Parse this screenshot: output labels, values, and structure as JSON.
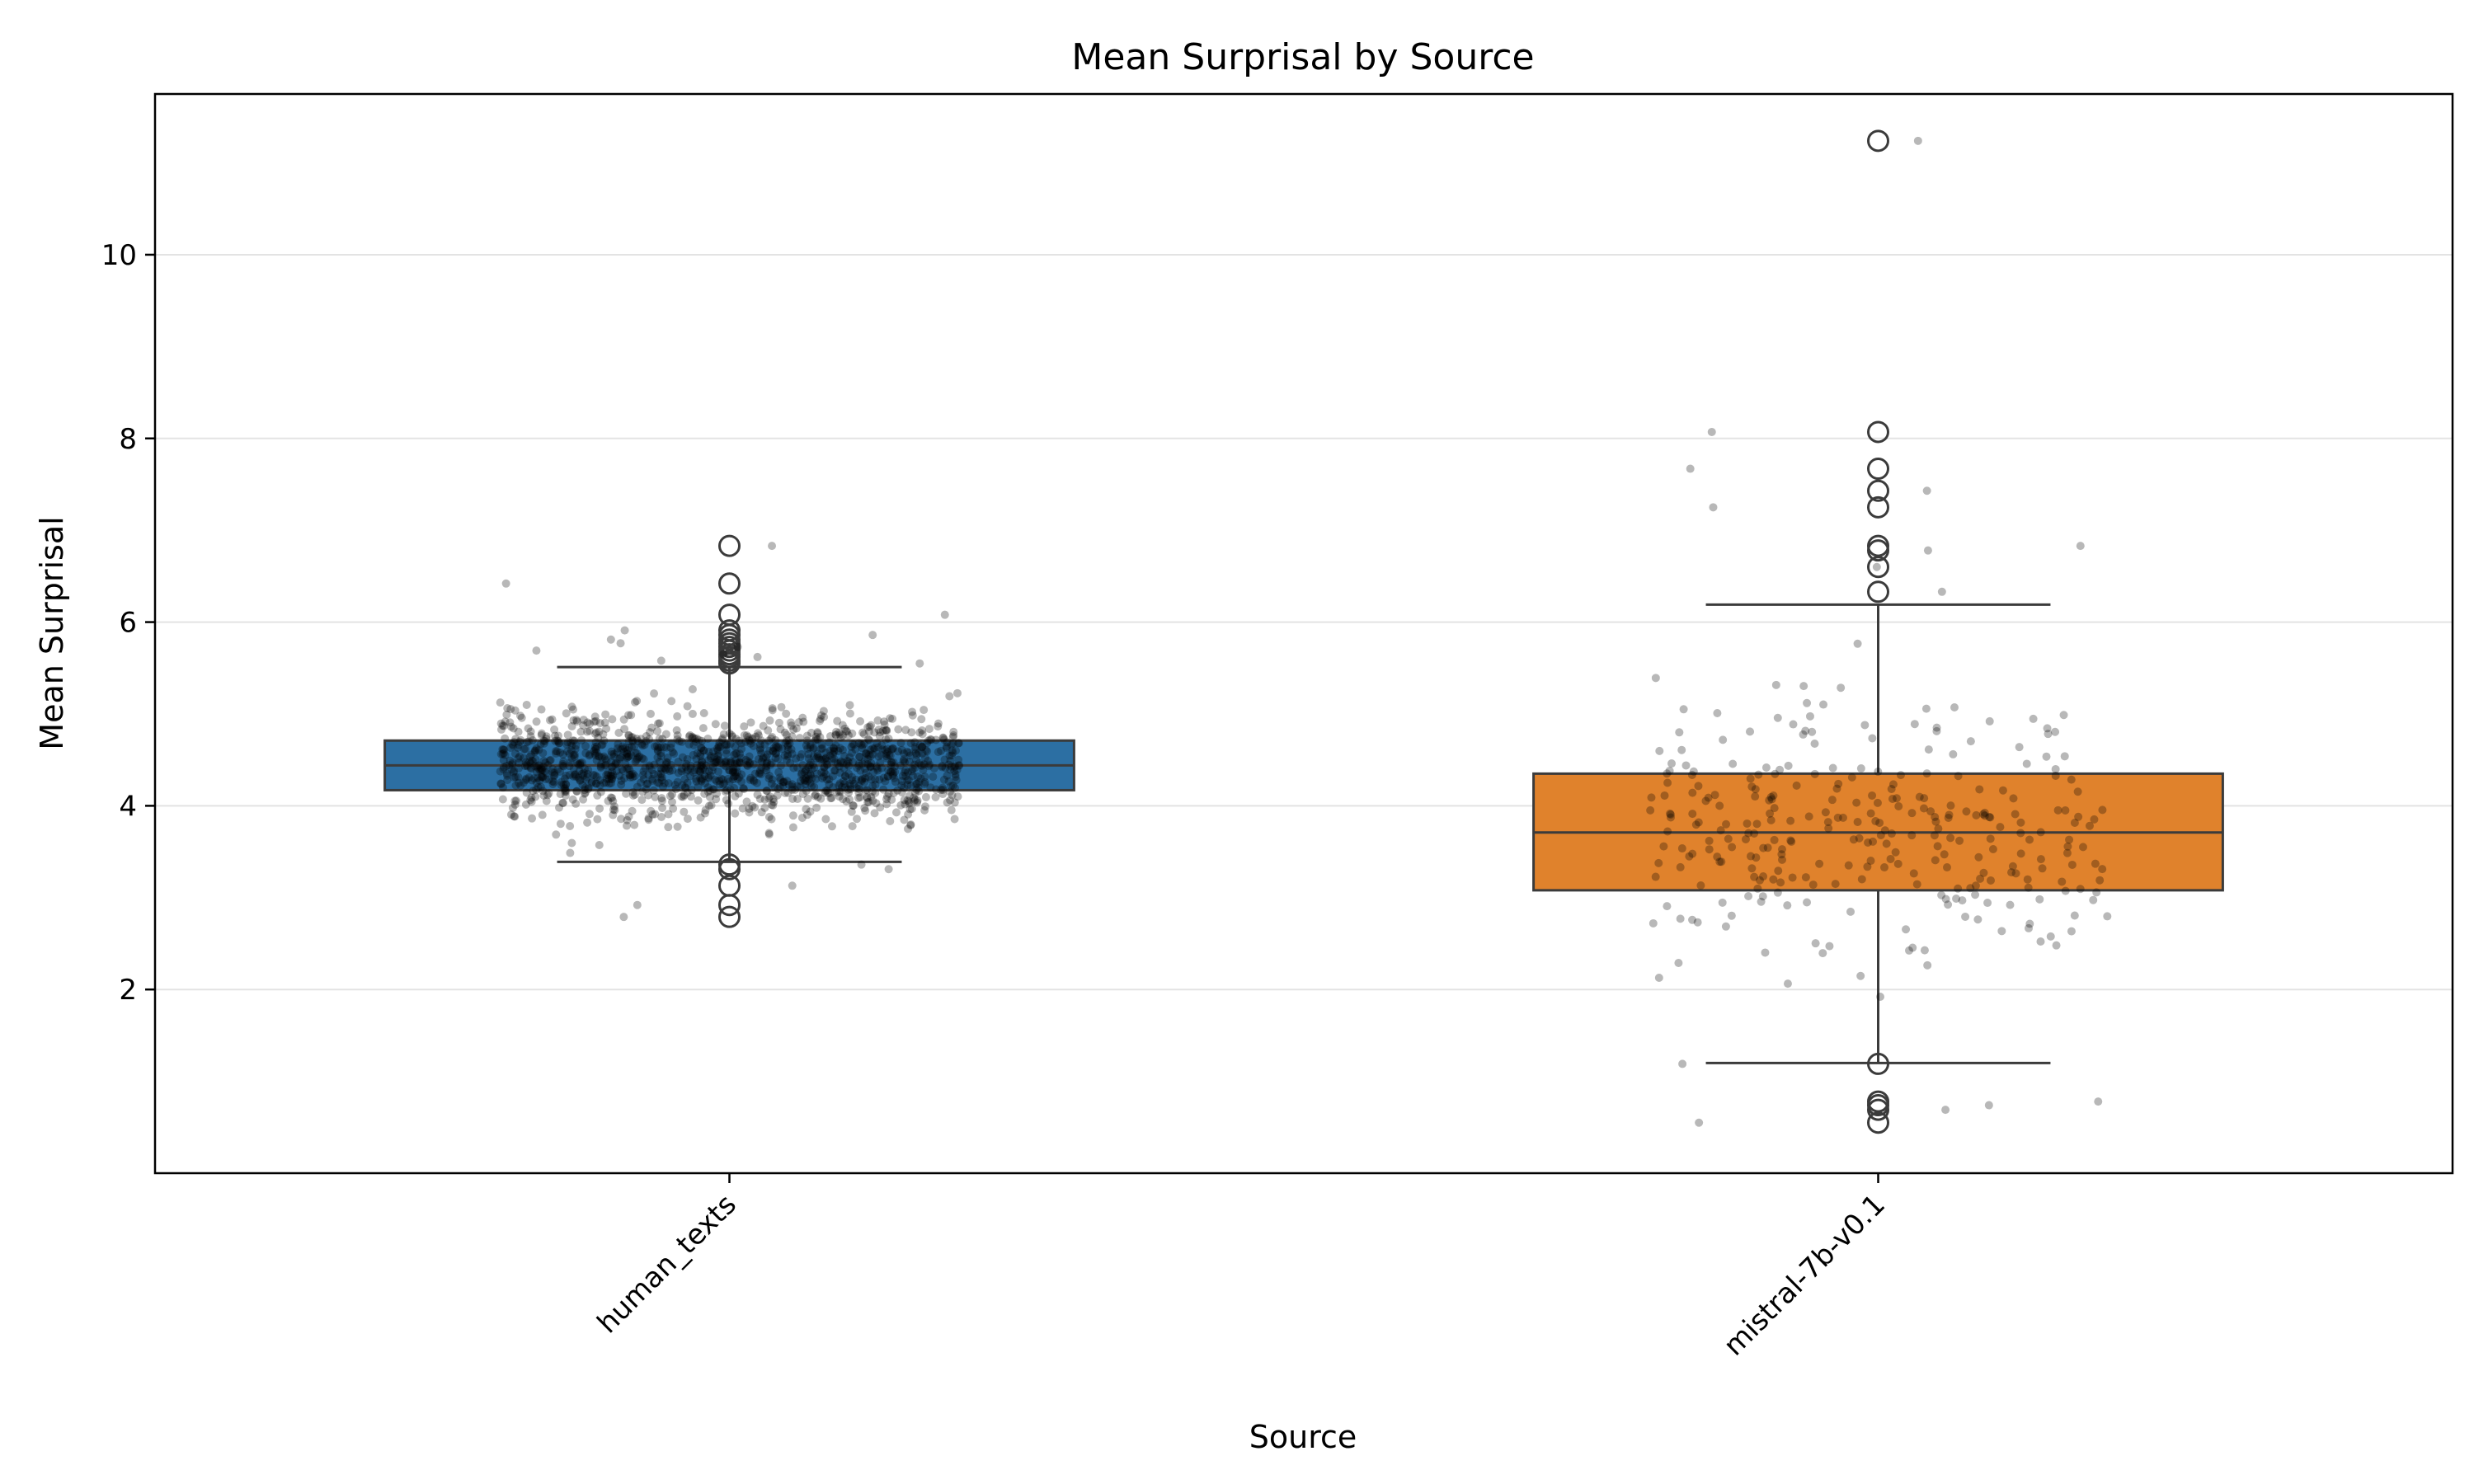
{
  "chart_data": {
    "type": "box",
    "title": "Mean Surprisal by Source",
    "xlabel": "Source",
    "ylabel": "Mean Surprisal",
    "ylim": [
      0,
      11.75
    ],
    "yticks": [
      2,
      4,
      6,
      8,
      10
    ],
    "grid": "y",
    "categories": [
      "human_texts",
      "mistral-7b-v0.1"
    ],
    "boxes": [
      {
        "name": "human_texts",
        "color": "#1f77b4",
        "fill": "#2c6fa3",
        "q1": 4.17,
        "median": 4.44,
        "q3": 4.71,
        "whisker_low": 3.39,
        "whisker_high": 5.51,
        "outliers": [
          6.83,
          6.42,
          6.08,
          5.91,
          5.86,
          5.81,
          5.77,
          5.73,
          5.69,
          5.65,
          5.62,
          5.58,
          5.55,
          3.36,
          3.31,
          3.13,
          2.92,
          2.79
        ],
        "jitter_count": 1400,
        "jitter_range": [
          2.79,
          6.83
        ]
      },
      {
        "name": "mistral-7b-v0.1",
        "color": "#ff7f0e",
        "fill": "#e0822c",
        "q1": 3.08,
        "median": 3.71,
        "q3": 4.35,
        "whisker_low": 1.2,
        "whisker_high": 6.19,
        "outliers": [
          11.24,
          8.07,
          7.67,
          7.43,
          7.25,
          6.83,
          6.78,
          6.6,
          6.33,
          1.19,
          0.78,
          0.74,
          0.69,
          0.55
        ],
        "jitter_count": 300,
        "jitter_range": [
          0.55,
          11.24
        ]
      }
    ]
  }
}
